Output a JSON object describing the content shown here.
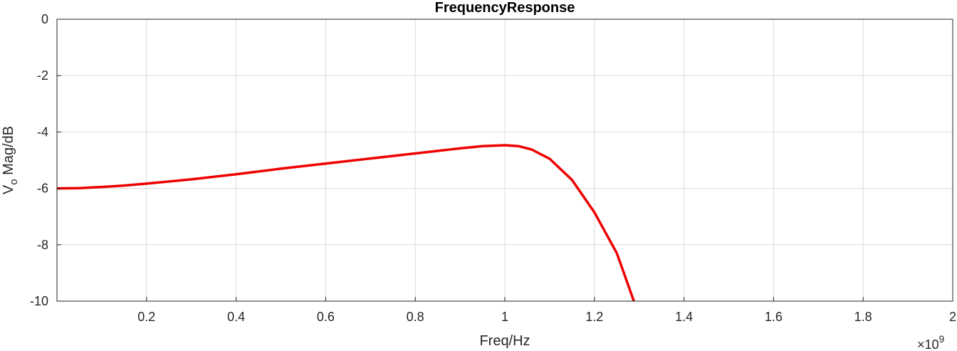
{
  "chart_data": {
    "type": "line",
    "title": "FrequencyResponse",
    "xlabel": "Freq/Hz",
    "ylabel": "Vo Mag/dB",
    "ylabel_parts": {
      "main": "V",
      "sub": "o",
      "rest": " Mag/dB"
    },
    "x_exponent": {
      "base": "×10",
      "power": "9"
    },
    "xlim": [
      0,
      2
    ],
    "ylim": [
      -10,
      0
    ],
    "xticks": [
      0.2,
      0.4,
      0.6,
      0.8,
      1,
      1.2,
      1.4,
      1.6,
      1.8,
      2
    ],
    "xtick_labels": [
      "0.2",
      "0.4",
      "0.6",
      "0.8",
      "1",
      "1.2",
      "1.4",
      "1.6",
      "1.8",
      "2"
    ],
    "yticks": [
      0,
      -2,
      -4,
      -6,
      -8,
      -10
    ],
    "ytick_labels": [
      "0",
      "-2",
      "-4",
      "-6",
      "-8",
      "-10"
    ],
    "grid": true,
    "line_color": "#ee0000",
    "series": [
      {
        "x": [
          0.0,
          0.05,
          0.1,
          0.15,
          0.2,
          0.3,
          0.4,
          0.5,
          0.6,
          0.7,
          0.8,
          0.9,
          0.95,
          1.0,
          1.03,
          1.06,
          1.1,
          1.15,
          1.2,
          1.25,
          1.288
        ],
        "values": [
          -6.0,
          -5.99,
          -5.95,
          -5.9,
          -5.83,
          -5.68,
          -5.5,
          -5.3,
          -5.12,
          -4.94,
          -4.76,
          -4.58,
          -4.5,
          -4.47,
          -4.5,
          -4.62,
          -4.95,
          -5.7,
          -6.85,
          -8.3,
          -10.0
        ]
      }
    ]
  }
}
